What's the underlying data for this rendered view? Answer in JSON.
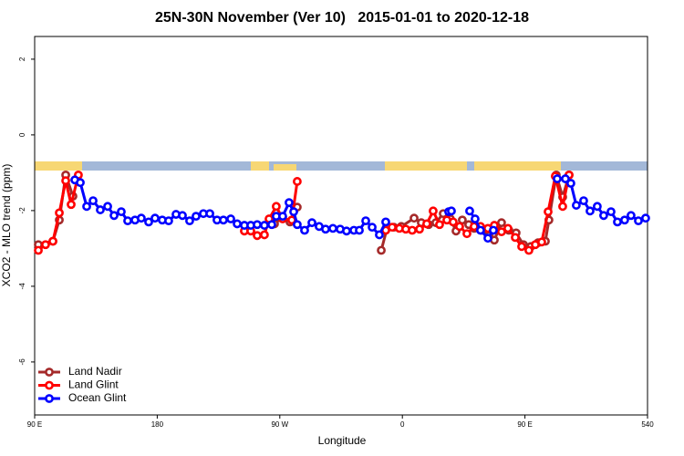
{
  "chart_data": {
    "type": "line",
    "title": "25N-30N November (Ver 10)   2015-01-01 to 2020-12-18",
    "xlabel": "Longitude",
    "ylabel": "XCO2 - MLO trend (ppm)",
    "xlim": [
      90,
      540
    ],
    "xticks": [
      {
        "value": 90,
        "label": "90 E"
      },
      180,
      {
        "value": 270,
        "label": "90 W"
      },
      {
        "value": 360,
        "label": "0"
      },
      {
        "value": 450,
        "label": "90 E"
      },
      540
    ],
    "ylim": [
      -7.4,
      2.6
    ],
    "yticks": [
      2,
      0,
      -2,
      -4,
      -6
    ],
    "legend": "bottom-left",
    "series": [
      {
        "name": "Land Nadir",
        "color": "#a52a2a",
        "x": [
          92.7,
          103.4,
          108.1,
          112.8,
          118.1,
          null,
          264.1,
          266.1,
          272.1,
          277.5,
          282.8,
          null,
          344.5,
          349.1,
          353.8,
          359.2,
          368.6,
          373.9,
          379.3,
          384.6,
          390,
          395.3,
          399.4,
          404,
          408.7,
          412.7,
          418.1,
          423.5,
          427.5,
          432.8,
          438.2,
          443.5,
          448.9,
          454.3,
          459.6,
          465,
          467.6,
          473,
          477.7,
          482.4
        ],
        "values": [
          -2.9,
          -2.81,
          -2.25,
          -1.06,
          -1.62,
          null,
          -2.32,
          -2.35,
          -2.18,
          -2.3,
          -1.91,
          null,
          -3.05,
          -2.42,
          -2.44,
          -2.42,
          -2.2,
          -2.32,
          -2.37,
          -2.32,
          -2.08,
          -2.22,
          -2.54,
          -2.25,
          -2.37,
          -2.47,
          -2.52,
          -2.66,
          -2.78,
          -2.32,
          -2.52,
          -2.59,
          -2.9,
          -2.95,
          -2.85,
          -2.81,
          -2.25,
          -1.06,
          -1.64,
          -1.06
        ]
      },
      {
        "name": "Land Glint",
        "color": "#ff0000",
        "x": [
          92.7,
          98,
          103.4,
          108.1,
          112.8,
          116.8,
          122.1,
          null,
          244,
          248.7,
          253.4,
          258.7,
          262.1,
          267.4,
          272.1,
          278.8,
          282.8,
          null,
          347.8,
          352.5,
          357.8,
          362.5,
          367.2,
          372.6,
          377.9,
          382.6,
          387.3,
          392.7,
          397.3,
          402,
          407.4,
          412.7,
          417.4,
          422.8,
          427.5,
          432.8,
          437.5,
          442.9,
          447.6,
          452.9,
          457.6,
          462.3,
          467,
          472.3,
          477.7,
          482.4
        ],
        "values": [
          -3.05,
          -2.9,
          -2.81,
          -2.06,
          -1.21,
          -1.84,
          -1.06,
          null,
          -2.54,
          -2.54,
          -2.66,
          -2.64,
          -2.22,
          -1.89,
          -2.22,
          -2.25,
          -1.23,
          null,
          -2.52,
          -2.44,
          -2.47,
          -2.49,
          -2.52,
          -2.49,
          -2.35,
          -2.01,
          -2.37,
          -2.25,
          -2.3,
          -2.42,
          -2.61,
          -2.42,
          -2.42,
          -2.47,
          -2.39,
          -2.56,
          -2.47,
          -2.71,
          -2.95,
          -3.05,
          -2.9,
          -2.83,
          -2.03,
          -1.09,
          -1.89,
          -1.06
        ]
      },
      {
        "name": "Ocean Glint",
        "color": "#0000ff",
        "x": [
          119.5,
          123.5,
          128.2,
          132.9,
          138.2,
          143.6,
          148.3,
          153.6,
          158.3,
          163.7,
          168.3,
          173.7,
          178.4,
          183.7,
          188.4,
          193.8,
          198.5,
          203.8,
          208.5,
          213.9,
          218.6,
          223.9,
          228.6,
          234,
          238.7,
          244,
          248.7,
          253.4,
          258.7,
          264.1,
          267.4,
          272.1,
          276.8,
          280.2,
          282.8,
          288.2,
          293.6,
          298.9,
          303.6,
          309,
          314.3,
          319,
          324.4,
          328.4,
          333.1,
          337.8,
          343.1,
          347.8,
          null,
          394,
          396,
          null,
          409.4,
          413.4,
          417.4,
          422.8,
          426.8,
          null,
          473.7,
          479.7,
          483.7,
          487.7,
          493.1,
          497.8,
          503.1,
          507.8,
          513.2,
          517.9,
          523.2,
          527.9,
          533.3,
          538.6
        ],
        "values": [
          -1.19,
          -1.26,
          -1.89,
          -1.74,
          -1.98,
          -1.89,
          -2.13,
          -2.03,
          -2.27,
          -2.25,
          -2.2,
          -2.3,
          -2.2,
          -2.25,
          -2.27,
          -2.1,
          -2.13,
          -2.27,
          -2.15,
          -2.08,
          -2.08,
          -2.25,
          -2.25,
          -2.22,
          -2.35,
          -2.39,
          -2.39,
          -2.37,
          -2.39,
          -2.37,
          -2.15,
          -2.15,
          -1.79,
          -2.03,
          -2.37,
          -2.52,
          -2.32,
          -2.42,
          -2.49,
          -2.47,
          -2.49,
          -2.54,
          -2.52,
          -2.52,
          -2.27,
          -2.44,
          -2.64,
          -2.3,
          null,
          -2.03,
          -2.01,
          null,
          -2.01,
          -2.22,
          -2.52,
          -2.73,
          -2.52,
          null,
          -1.16,
          -1.16,
          -1.28,
          -1.86,
          -1.74,
          -2.01,
          -1.89,
          -2.13,
          -2.03,
          -2.3,
          -2.25,
          -2.13,
          -2.27,
          -2.2
        ]
      }
    ]
  }
}
